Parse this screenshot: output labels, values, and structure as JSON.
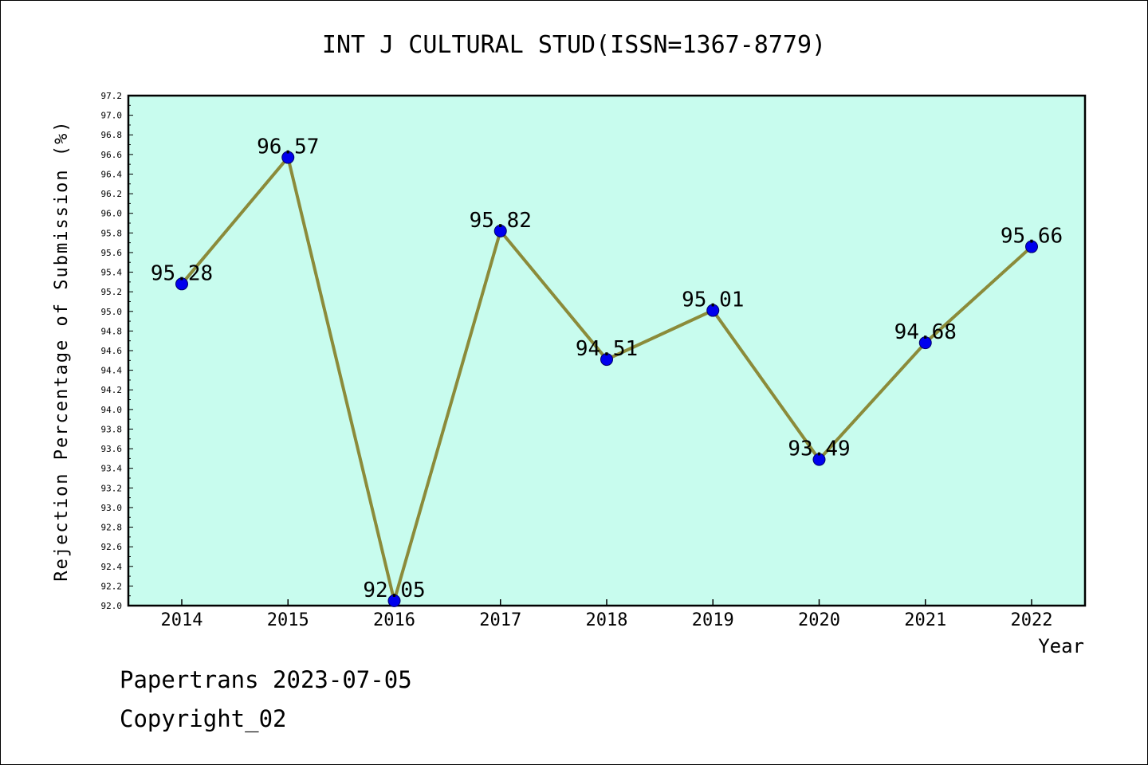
{
  "chart_data": {
    "type": "line",
    "title": "INT J CULTURAL STUD(ISSN=1367-8779)",
    "xlabel": "Year",
    "ylabel": "Rejection Percentage of Submission (%)",
    "categories": [
      "2014",
      "2015",
      "2016",
      "2017",
      "2018",
      "2019",
      "2020",
      "2021",
      "2022"
    ],
    "values": [
      95.28,
      96.57,
      92.05,
      95.82,
      94.51,
      95.01,
      93.49,
      94.68,
      95.66
    ],
    "data_labels": [
      "95.28",
      "96.57",
      "92.05",
      "95.82",
      "94.51",
      "95.01",
      "93.49",
      "94.68",
      "95.66"
    ],
    "ylim": [
      92.0,
      97.2
    ],
    "yticks": [
      "92.0",
      "92.2",
      "92.4",
      "92.6",
      "92.8",
      "93.0",
      "93.2",
      "93.4",
      "93.6",
      "93.8",
      "94.0",
      "94.2",
      "94.4",
      "94.6",
      "94.8",
      "95.0",
      "95.2",
      "95.4",
      "95.6",
      "95.8",
      "96.0",
      "96.2",
      "96.4",
      "96.6",
      "96.8",
      "97.0",
      "97.2"
    ],
    "grid": false,
    "colors": {
      "plot_background": "#c8fcee",
      "line": "#8b8b3a",
      "marker": "#0000ee"
    }
  },
  "footer": {
    "line1": "Papertrans 2023-07-05",
    "line2": "Copyright_02"
  }
}
